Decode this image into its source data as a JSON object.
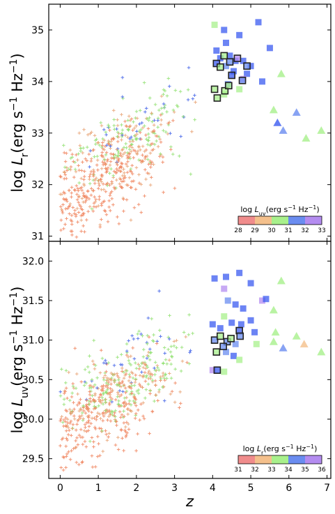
{
  "chart_data": [
    {
      "type": "scatter",
      "panel": "top",
      "xlim": [
        -0.3,
        7.1
      ],
      "ylim": [
        30.9,
        35.5
      ],
      "xticks": [
        0,
        1,
        2,
        3,
        4,
        5,
        6,
        7
      ],
      "yticks": [
        31,
        32,
        33,
        34,
        35
      ],
      "ylabel": "log L_r(erg s^-1 Hz^-1)",
      "ylabel_parts": {
        "log": "log ",
        "L": "L",
        "sub": "r",
        "unit": "(erg s",
        "exp1": "−1",
        "unit2": " Hz",
        "exp2": "−1",
        "close": ")"
      },
      "colorbar": {
        "label_parts": {
          "log": "log ",
          "L": "L",
          "sub": "uv",
          "unit": "(erg s",
          "exp1": "−1",
          "unit2": " Hz",
          "exp2": "−1",
          "close": ")"
        },
        "ticks": [
          "28",
          "29",
          "30",
          "31",
          "32",
          "33"
        ],
        "colors": [
          "#f08c8c",
          "#f4c08c",
          "#a8f08c",
          "#6a8cf0",
          "#b48cf0"
        ]
      },
      "squares": [
        {
          "x": 4.05,
          "y": 35.1,
          "c": "#a8f08c"
        },
        {
          "x": 4.3,
          "y": 35.0,
          "c": "#3b5bf0"
        },
        {
          "x": 4.35,
          "y": 34.75,
          "c": "#3b5bf0"
        },
        {
          "x": 4.7,
          "y": 34.9,
          "c": "#3b5bf0"
        },
        {
          "x": 5.2,
          "y": 35.15,
          "c": "#3b5bf0"
        },
        {
          "x": 5.5,
          "y": 34.65,
          "c": "#3b5bf0"
        },
        {
          "x": 4.1,
          "y": 34.6,
          "c": "#3b5bf0"
        },
        {
          "x": 4.2,
          "y": 34.45,
          "c": "#3b5bf0"
        },
        {
          "x": 4.45,
          "y": 34.5,
          "c": "#3b5bf0"
        },
        {
          "x": 4.6,
          "y": 34.4,
          "c": "#3b5bf0"
        },
        {
          "x": 4.8,
          "y": 34.4,
          "c": "#3b5bf0"
        },
        {
          "x": 5.0,
          "y": 34.3,
          "c": "#3b5bf0"
        },
        {
          "x": 4.9,
          "y": 34.15,
          "c": "#3b5bf0"
        },
        {
          "x": 5.3,
          "y": 34.0,
          "c": "#3b5bf0"
        },
        {
          "x": 4.35,
          "y": 34.3,
          "c": "#6a8cf0"
        },
        {
          "x": 4.55,
          "y": 34.2,
          "c": "#3b5bf0"
        },
        {
          "x": 4.8,
          "y": 34.05,
          "c": "#b48cf0"
        },
        {
          "x": 4.4,
          "y": 33.95,
          "c": "#6a8cf0"
        },
        {
          "x": 4.7,
          "y": 33.85,
          "c": "#a8f08c"
        },
        {
          "x": 4.3,
          "y": 33.75,
          "c": "#a8f08c"
        }
      ],
      "outlined": [
        {
          "x": 4.1,
          "y": 34.35,
          "c": "#3b5bf0"
        },
        {
          "x": 4.3,
          "y": 34.5,
          "c": "#a8f08c"
        },
        {
          "x": 4.45,
          "y": 34.38,
          "c": "#6a8cf0"
        },
        {
          "x": 4.65,
          "y": 34.45,
          "c": "#b48cf0"
        },
        {
          "x": 4.9,
          "y": 34.3,
          "c": "#6a8cf0"
        },
        {
          "x": 4.2,
          "y": 34.28,
          "c": "#a8f08c"
        },
        {
          "x": 4.5,
          "y": 34.12,
          "c": "#3b5bf0"
        },
        {
          "x": 4.78,
          "y": 34.02,
          "c": "#6a8cf0"
        },
        {
          "x": 4.05,
          "y": 33.85,
          "c": "#a8f08c"
        },
        {
          "x": 4.32,
          "y": 33.82,
          "c": "#a8f08c"
        },
        {
          "x": 4.12,
          "y": 33.68,
          "c": "#a8f08c"
        },
        {
          "x": 4.42,
          "y": 33.92,
          "c": "#a8f08c"
        }
      ],
      "triangles": [
        {
          "x": 5.8,
          "y": 34.15,
          "c": "#a8f08c"
        },
        {
          "x": 5.6,
          "y": 33.45,
          "c": "#a8f08c"
        },
        {
          "x": 6.2,
          "y": 33.4,
          "c": "#6a8cf0"
        },
        {
          "x": 5.7,
          "y": 33.2,
          "c": "#3b5bf0"
        },
        {
          "x": 5.85,
          "y": 33.05,
          "c": "#6a8cf0"
        },
        {
          "x": 6.45,
          "y": 32.9,
          "c": "#a8f08c"
        },
        {
          "x": 6.85,
          "y": 33.05,
          "c": "#a8f08c"
        }
      ]
    },
    {
      "type": "scatter",
      "panel": "bottom",
      "xlim": [
        -0.3,
        7.1
      ],
      "ylim": [
        29.25,
        32.25
      ],
      "xticks": [
        0,
        1,
        2,
        3,
        4,
        5,
        6,
        7
      ],
      "yticks": [
        29.5,
        30.0,
        30.5,
        31.0,
        31.5,
        32.0
      ],
      "xlabel": "z",
      "ylabel": "log L_uv(erg s^-1 Hz^-1)",
      "ylabel_parts": {
        "log": "log ",
        "L": "L",
        "sub": "uv",
        "unit": "(erg s",
        "exp1": "−1",
        "unit2": " Hz",
        "exp2": "−1",
        "close": ")"
      },
      "colorbar": {
        "label_parts": {
          "log": "log ",
          "L": "L",
          "sub": "r",
          "unit": "(erg s",
          "exp1": "−1",
          "unit2": " Hz",
          "exp2": "−1",
          "close": ")"
        },
        "ticks": [
          "31",
          "32",
          "33",
          "34",
          "35",
          "36"
        ],
        "colors": [
          "#f08c8c",
          "#f4c08c",
          "#a8f08c",
          "#6a8cf0",
          "#b48cf0"
        ]
      },
      "squares": [
        {
          "x": 4.05,
          "y": 31.78,
          "c": "#3b5bf0"
        },
        {
          "x": 4.35,
          "y": 31.8,
          "c": "#3b5bf0"
        },
        {
          "x": 4.7,
          "y": 31.85,
          "c": "#3b5bf0"
        },
        {
          "x": 5.0,
          "y": 31.72,
          "c": "#3b5bf0"
        },
        {
          "x": 4.3,
          "y": 31.65,
          "c": "#b48cf0"
        },
        {
          "x": 4.4,
          "y": 31.5,
          "c": "#6a8cf0"
        },
        {
          "x": 4.6,
          "y": 31.45,
          "c": "#3b5bf0"
        },
        {
          "x": 4.8,
          "y": 31.4,
          "c": "#3b5bf0"
        },
        {
          "x": 5.3,
          "y": 31.5,
          "c": "#b48cf0"
        },
        {
          "x": 5.4,
          "y": 31.52,
          "c": "#3b5bf0"
        },
        {
          "x": 4.3,
          "y": 31.3,
          "c": "#a8f08c"
        },
        {
          "x": 4.5,
          "y": 31.22,
          "c": "#3b5bf0"
        },
        {
          "x": 4.0,
          "y": 31.2,
          "c": "#3b5bf0"
        },
        {
          "x": 4.2,
          "y": 31.15,
          "c": "#3b5bf0"
        },
        {
          "x": 4.75,
          "y": 31.2,
          "c": "#3b5bf0"
        },
        {
          "x": 5.0,
          "y": 31.25,
          "c": "#3b5bf0"
        },
        {
          "x": 5.1,
          "y": 31.1,
          "c": "#3b5bf0"
        },
        {
          "x": 4.6,
          "y": 30.95,
          "c": "#6a8cf0"
        },
        {
          "x": 4.35,
          "y": 30.85,
          "c": "#6a8cf0"
        },
        {
          "x": 4.55,
          "y": 30.8,
          "c": "#3b5bf0"
        },
        {
          "x": 4.7,
          "y": 30.75,
          "c": "#a8f08c"
        },
        {
          "x": 5.15,
          "y": 30.95,
          "c": "#a8f08c"
        },
        {
          "x": 4.3,
          "y": 30.6,
          "c": "#a8f08c"
        },
        {
          "x": 4.0,
          "y": 30.62,
          "c": "#b48cf0"
        }
      ],
      "outlined": [
        {
          "x": 4.05,
          "y": 31.0,
          "c": "#6a8cf0"
        },
        {
          "x": 4.2,
          "y": 31.05,
          "c": "#a8f08c"
        },
        {
          "x": 4.38,
          "y": 30.98,
          "c": "#6a8cf0"
        },
        {
          "x": 4.48,
          "y": 31.02,
          "c": "#a8f08c"
        },
        {
          "x": 4.7,
          "y": 31.12,
          "c": "#3b5bf0"
        },
        {
          "x": 4.72,
          "y": 31.05,
          "c": "#6a8cf0"
        },
        {
          "x": 4.1,
          "y": 30.85,
          "c": "#a8f08c"
        },
        {
          "x": 4.28,
          "y": 30.92,
          "c": "#6a8cf0"
        },
        {
          "x": 4.12,
          "y": 30.62,
          "c": "#3b5bf0"
        }
      ],
      "triangles": [
        {
          "x": 5.8,
          "y": 31.75,
          "c": "#a8f08c"
        },
        {
          "x": 5.6,
          "y": 31.38,
          "c": "#a8f08c"
        },
        {
          "x": 5.65,
          "y": 31.1,
          "c": "#a8f08c"
        },
        {
          "x": 5.6,
          "y": 30.98,
          "c": "#a8f08c"
        },
        {
          "x": 6.2,
          "y": 31.05,
          "c": "#a8f08c"
        },
        {
          "x": 6.4,
          "y": 30.95,
          "c": "#f4c08c"
        },
        {
          "x": 5.85,
          "y": 30.9,
          "c": "#6a8cf0"
        },
        {
          "x": 6.85,
          "y": 30.85,
          "c": "#a8f08c"
        }
      ]
    }
  ]
}
